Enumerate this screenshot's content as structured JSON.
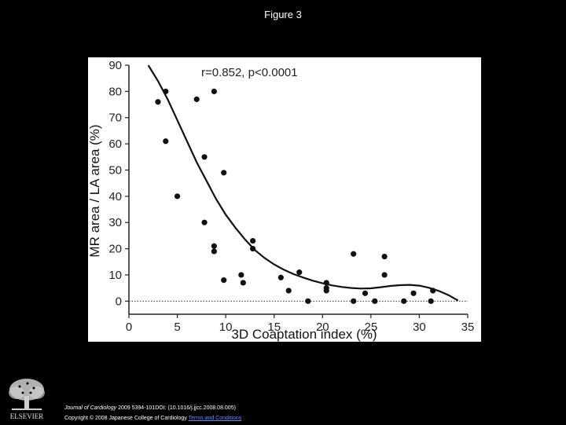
{
  "slide": {
    "title": "Figure 3"
  },
  "footer": {
    "journal": "Journal of Cardiology",
    "citation": " 2009 5394-101DOI: (10.1016/j.jjcc.2008.08.005)",
    "copyright": "Copyright © 2008 Japanese College of Cardiology ",
    "terms_link": "Terms and Conditions"
  },
  "publisher": {
    "name": "ELSEVIER",
    "logo_icon": "elsevier-tree-icon"
  },
  "chart_data": {
    "type": "scatter",
    "title": "",
    "xlabel": "3D Coaptation index (%)",
    "ylabel": "MR area / LA area (%)",
    "xlim": [
      0,
      35
    ],
    "ylim": [
      -5,
      90
    ],
    "xticks": [
      0,
      5,
      10,
      15,
      20,
      25,
      30,
      35
    ],
    "yticks": [
      0,
      10,
      20,
      30,
      40,
      50,
      60,
      70,
      80,
      90
    ],
    "annotation": "r=0.852, p<0.0001",
    "reference_line": {
      "y": 0,
      "style": "dotted"
    },
    "points": [
      {
        "x": 3.0,
        "y": 76
      },
      {
        "x": 3.8,
        "y": 80
      },
      {
        "x": 3.8,
        "y": 61
      },
      {
        "x": 5.0,
        "y": 40
      },
      {
        "x": 7.0,
        "y": 77
      },
      {
        "x": 7.8,
        "y": 55
      },
      {
        "x": 7.8,
        "y": 30
      },
      {
        "x": 8.8,
        "y": 80
      },
      {
        "x": 8.8,
        "y": 21
      },
      {
        "x": 8.8,
        "y": 19
      },
      {
        "x": 9.8,
        "y": 49
      },
      {
        "x": 9.8,
        "y": 8
      },
      {
        "x": 11.6,
        "y": 10
      },
      {
        "x": 11.8,
        "y": 7
      },
      {
        "x": 12.8,
        "y": 23
      },
      {
        "x": 12.8,
        "y": 20
      },
      {
        "x": 15.7,
        "y": 9
      },
      {
        "x": 16.5,
        "y": 4
      },
      {
        "x": 17.6,
        "y": 11
      },
      {
        "x": 18.5,
        "y": 0
      },
      {
        "x": 20.4,
        "y": 7
      },
      {
        "x": 20.4,
        "y": 5
      },
      {
        "x": 20.4,
        "y": 4
      },
      {
        "x": 23.2,
        "y": 18
      },
      {
        "x": 23.2,
        "y": 0
      },
      {
        "x": 24.4,
        "y": 3
      },
      {
        "x": 25.4,
        "y": 0
      },
      {
        "x": 26.4,
        "y": 17
      },
      {
        "x": 26.4,
        "y": 10
      },
      {
        "x": 28.4,
        "y": 0
      },
      {
        "x": 29.4,
        "y": 3
      },
      {
        "x": 31.2,
        "y": 0
      },
      {
        "x": 31.4,
        "y": 4
      }
    ],
    "fit_curve": [
      [
        2.0,
        90
      ],
      [
        3.0,
        84
      ],
      [
        4.0,
        77
      ],
      [
        5.0,
        69
      ],
      [
        6.0,
        61
      ],
      [
        7.0,
        53
      ],
      [
        8.0,
        46
      ],
      [
        9.0,
        39
      ],
      [
        10.0,
        33
      ],
      [
        11.0,
        28
      ],
      [
        12.0,
        23.5
      ],
      [
        13.0,
        19.5
      ],
      [
        14.0,
        16.5
      ],
      [
        15.0,
        14
      ],
      [
        16.0,
        12
      ],
      [
        17.0,
        10.3
      ],
      [
        18.0,
        9
      ],
      [
        19.0,
        7.8
      ],
      [
        20.0,
        6.8
      ],
      [
        21.0,
        6
      ],
      [
        22.0,
        5.4
      ],
      [
        23.0,
        5
      ],
      [
        24.0,
        4.8
      ],
      [
        25.0,
        4.9
      ],
      [
        26.0,
        5.3
      ],
      [
        27.0,
        5.8
      ],
      [
        28.0,
        6.1
      ],
      [
        29.0,
        6.2
      ],
      [
        30.0,
        5.9
      ],
      [
        31.0,
        5.1
      ],
      [
        32.0,
        3.9
      ],
      [
        33.0,
        2.3
      ],
      [
        34.0,
        0.2
      ]
    ]
  }
}
